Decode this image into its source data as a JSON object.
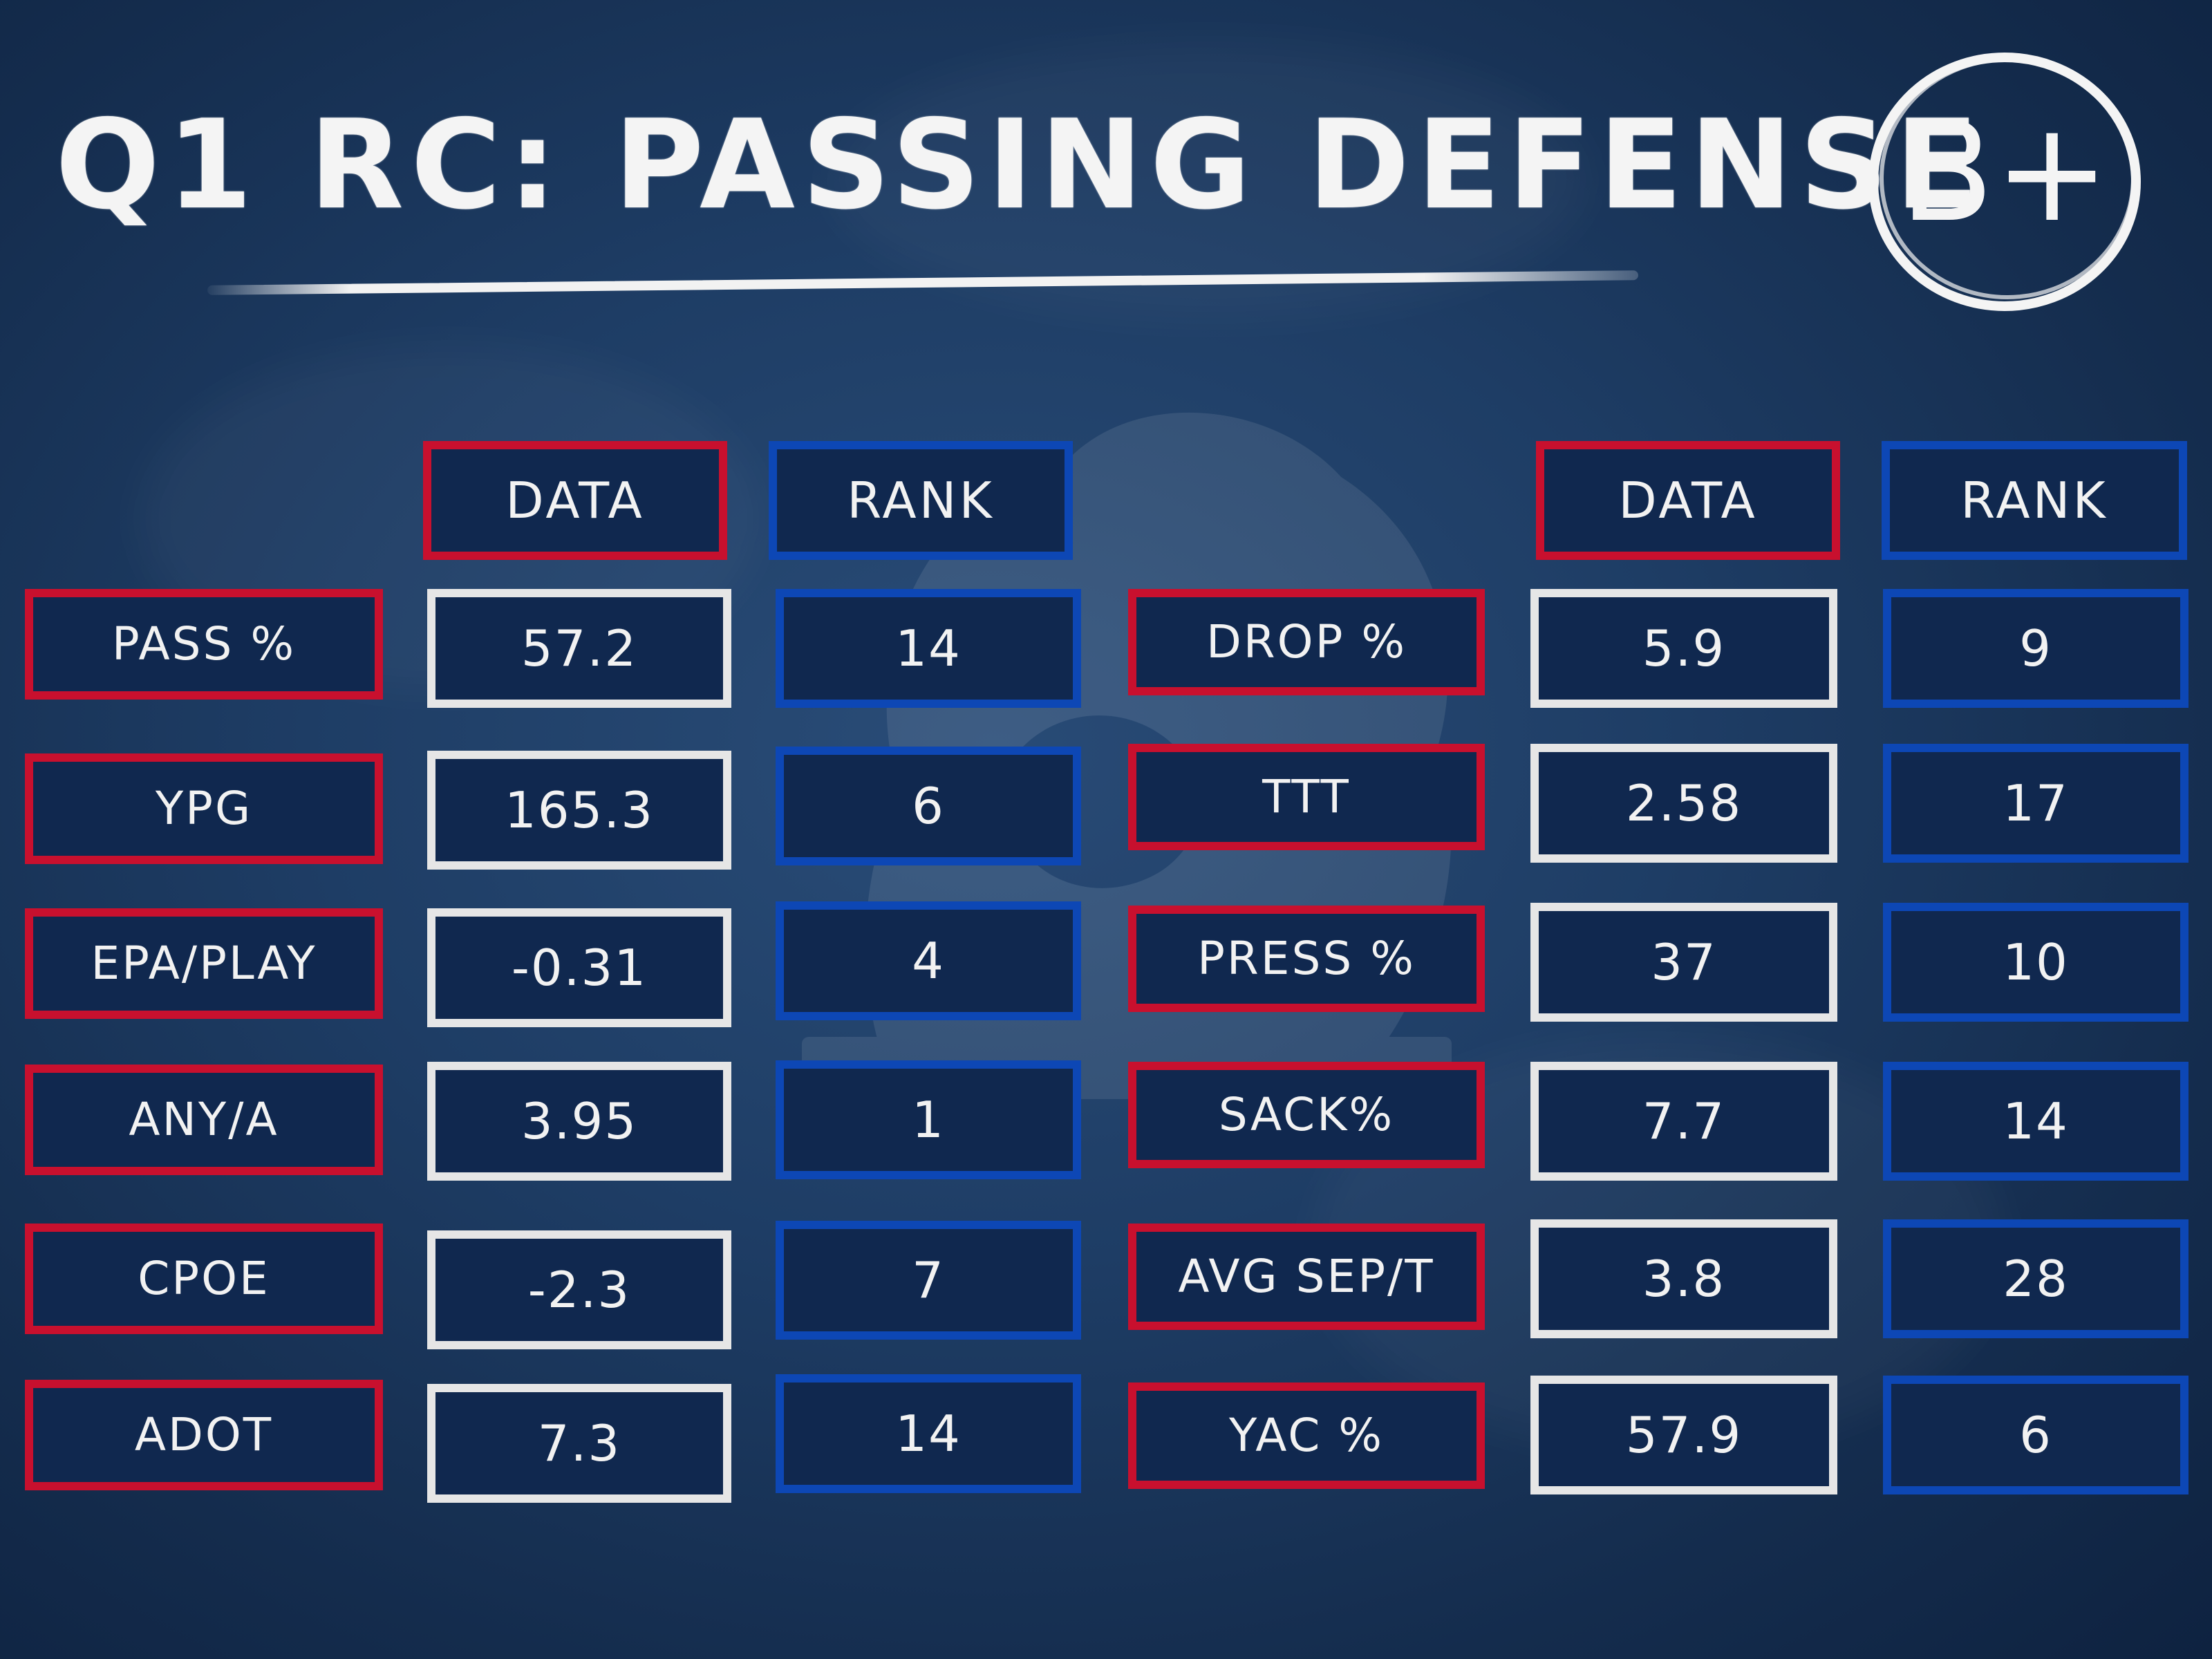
{
  "title": "Q1 RC: PASSING DEFENSE",
  "grade": "B+",
  "colors": {
    "background": "#1e3d65",
    "label_border": "#c8102e",
    "rank_border": "#0d47b5",
    "data_border": "#e6e6e6",
    "box_fill": "#10284f"
  },
  "left_table": {
    "headers": {
      "data": "DATA",
      "rank": "RANK"
    },
    "rows": [
      {
        "label": "PASS %",
        "data": "57.2",
        "rank": "14"
      },
      {
        "label": "YPG",
        "data": "165.3",
        "rank": "6"
      },
      {
        "label": "EPA/PLAY",
        "data": "-0.31",
        "rank": "4"
      },
      {
        "label": "ANY/A",
        "data": "3.95",
        "rank": "1"
      },
      {
        "label": "CPOE",
        "data": "-2.3",
        "rank": "7"
      },
      {
        "label": "ADOT",
        "data": "7.3",
        "rank": "14"
      }
    ]
  },
  "right_table": {
    "headers": {
      "data": "DATA",
      "rank": "RANK"
    },
    "rows": [
      {
        "label": "DROP %",
        "data": "5.9",
        "rank": "9"
      },
      {
        "label": "TTT",
        "data": "2.58",
        "rank": "17"
      },
      {
        "label": "PRESS %",
        "data": "37",
        "rank": "10"
      },
      {
        "label": "SACK%",
        "data": "7.7",
        "rank": "14"
      },
      {
        "label": "AVG SEP/T",
        "data": "3.8",
        "rank": "28"
      },
      {
        "label": "YAC %",
        "data": "57.9",
        "rank": "6"
      }
    ]
  }
}
